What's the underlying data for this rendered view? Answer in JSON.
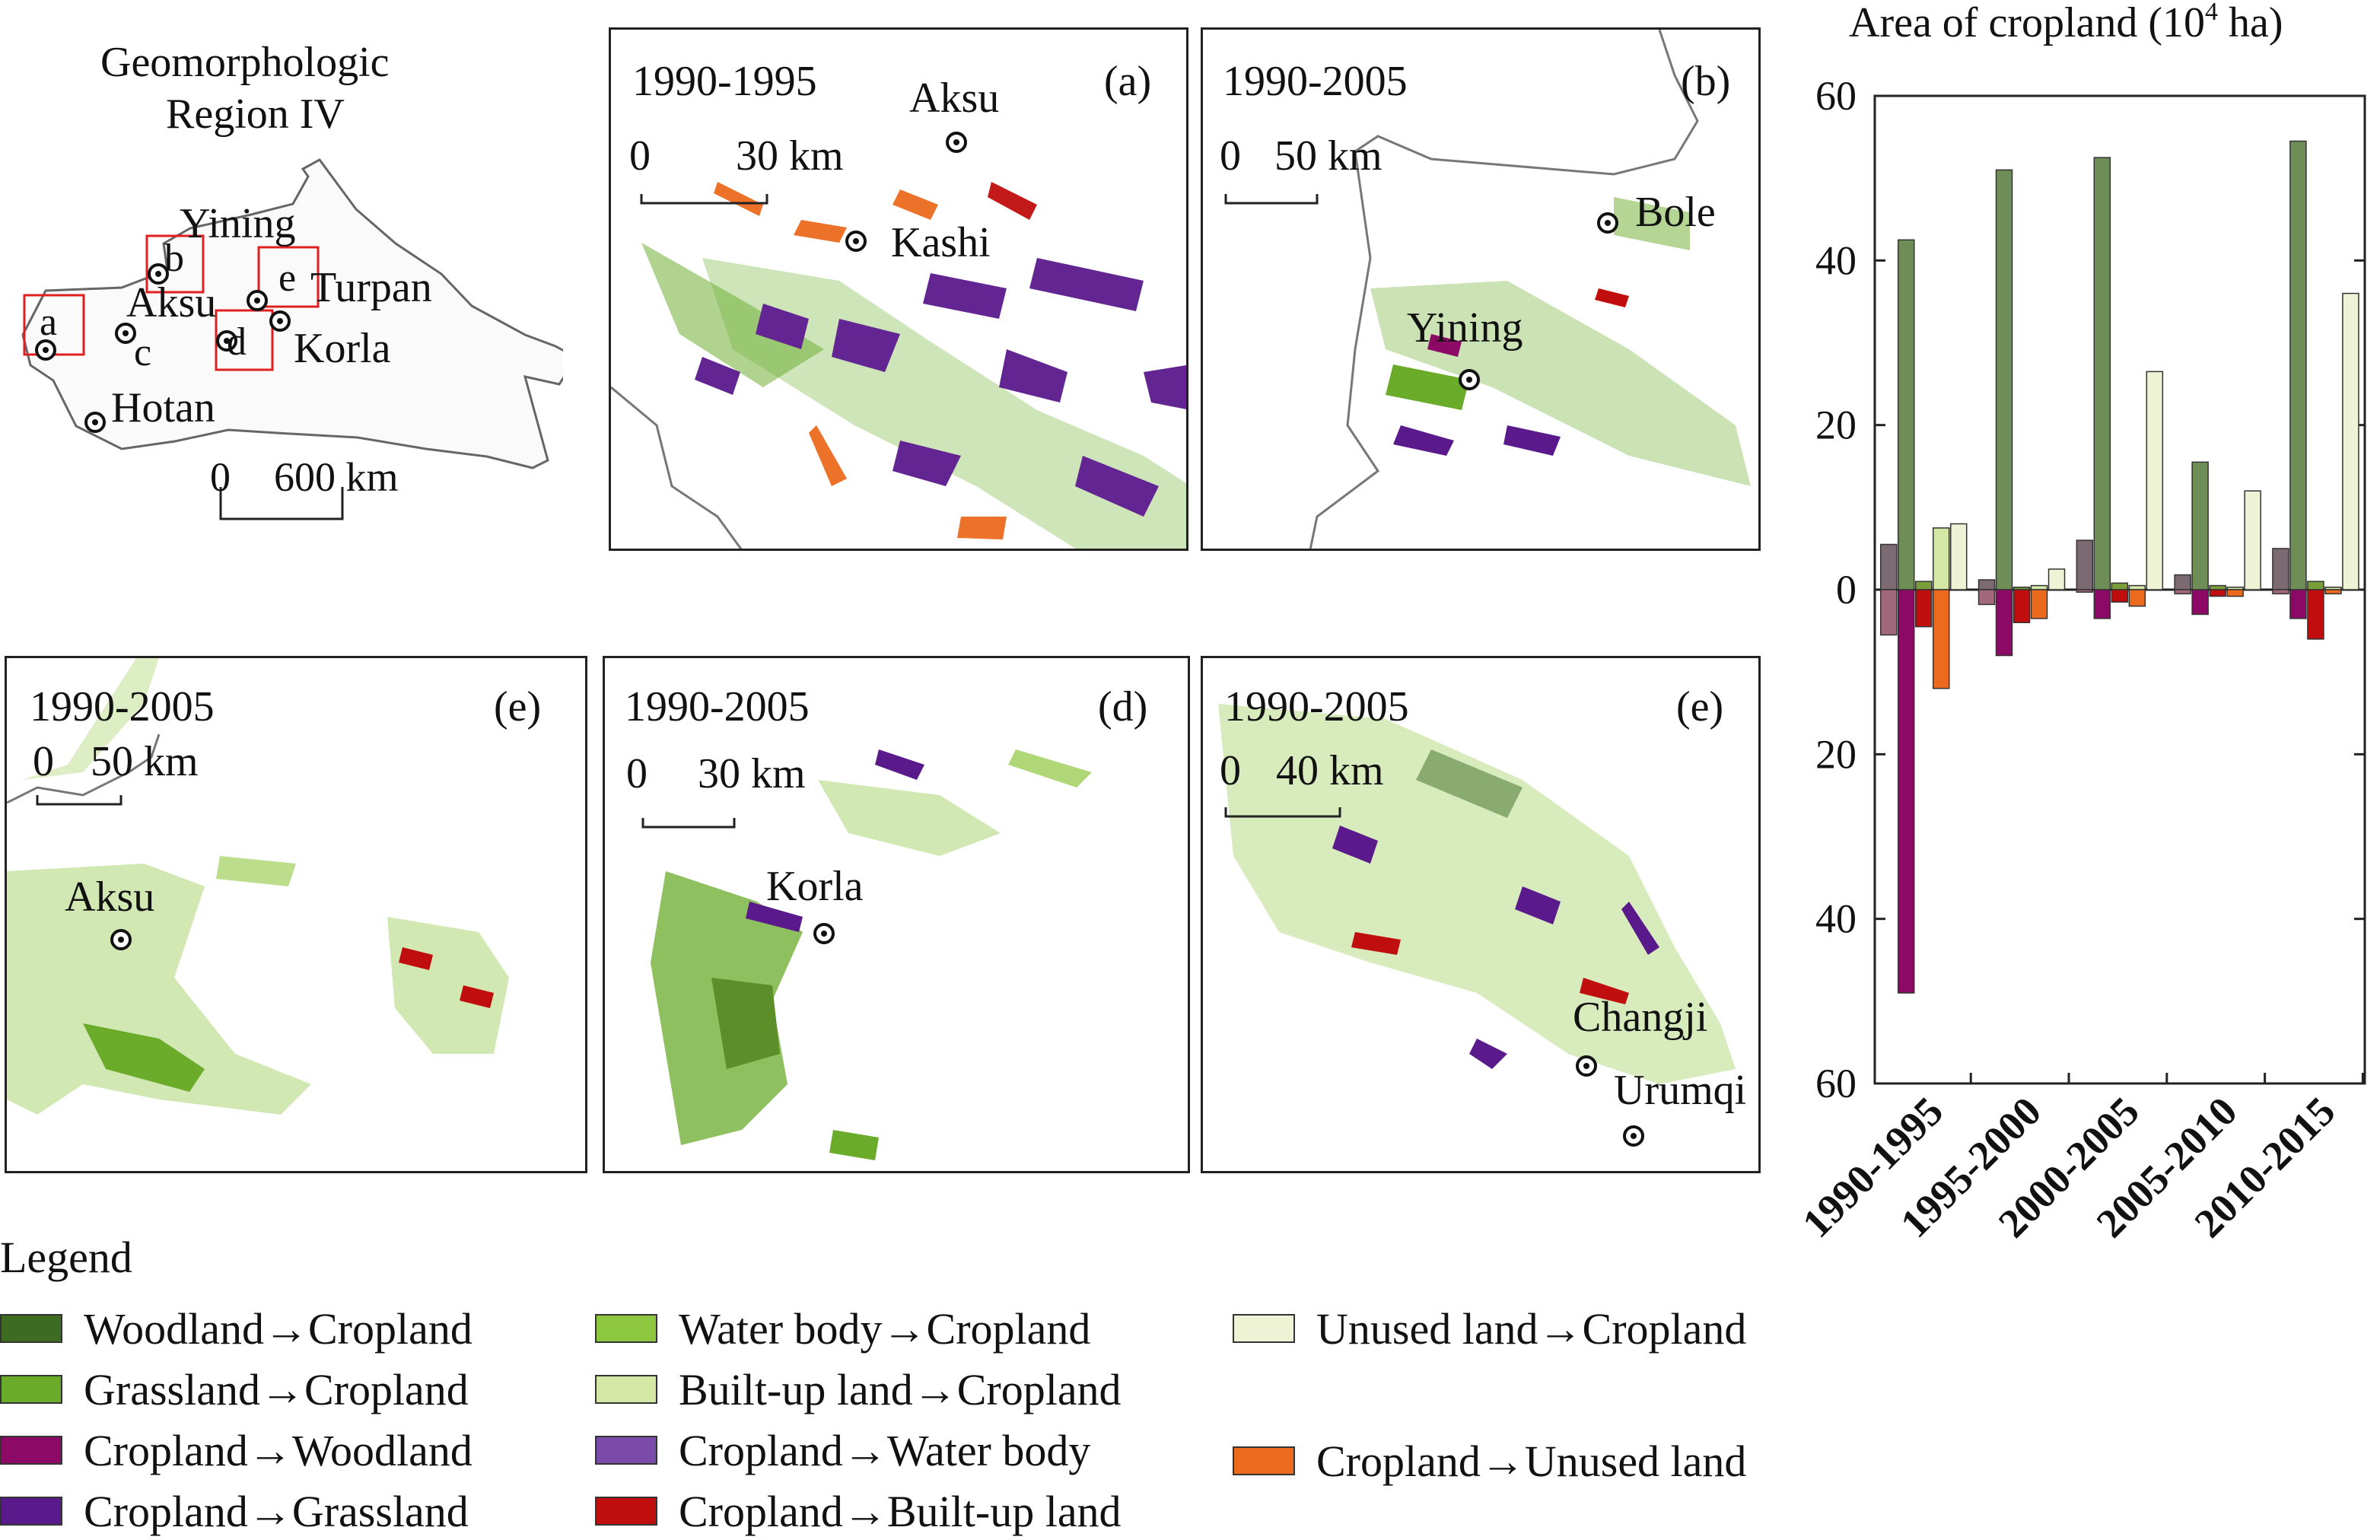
{
  "overview": {
    "title_line1": "Geomorphologic",
    "title_line2": "Region IV",
    "cities": [
      "Yining",
      "Turpan",
      "Aksu",
      "Korla",
      "Hotan"
    ],
    "box_labels": [
      "a",
      "b",
      "c",
      "d",
      "e"
    ],
    "scale": {
      "zero": "0",
      "value": "600 km"
    }
  },
  "panels": [
    {
      "period": "1990-1995",
      "tag": "(a)",
      "scale_zero": "0",
      "scale_value": "30 km",
      "cities": [
        "Aksu",
        "Kashi"
      ]
    },
    {
      "period": "1990-2005",
      "tag": "(b)",
      "scale_zero": "0",
      "scale_value": "50 km",
      "cities": [
        "Bole",
        "Yining"
      ]
    },
    {
      "period": "1990-2005",
      "tag": "(e)",
      "scale_zero": "0",
      "scale_value": "50 km",
      "cities": [
        "Aksu"
      ]
    },
    {
      "period": "1990-2005",
      "tag": "(d)",
      "scale_zero": "0",
      "scale_value": "30 km",
      "cities": [
        "Korla"
      ]
    },
    {
      "period": "1990-2005",
      "tag": "(e)",
      "scale_zero": "0",
      "scale_value": "40 km",
      "cities": [
        "Changji",
        "Urumqi"
      ]
    }
  ],
  "legend": {
    "title": "Legend",
    "items": [
      {
        "label": "Woodland→Cropland",
        "color": "#3d6b22"
      },
      {
        "label": "Grassland→Cropland",
        "color": "#6aab2a"
      },
      {
        "label": "Cropland→Woodland",
        "color": "#8c0a66"
      },
      {
        "label": "Cropland→Grassland",
        "color": "#5a1a8c"
      },
      {
        "label": "Water body→Cropland",
        "color": "#8dc63f"
      },
      {
        "label": "Built-up land→Cropland",
        "color": "#d5e7a5"
      },
      {
        "label": "Cropland→Water body",
        "color": "#7a4ba8"
      },
      {
        "label": "Cropland→Built-up land",
        "color": "#c00d0d"
      },
      {
        "label": "Unused land→Cropland",
        "color": "#eef3d6"
      },
      {
        "label": "Cropland→Unused land",
        "color": "#ec6a1e"
      }
    ]
  },
  "chart_data": {
    "type": "bar",
    "title": "Area of cropland (10",
    "title_sup": "4",
    "title_end": " ha)",
    "categories": [
      "1990-1995",
      "1995-2000",
      "2000-2005",
      "2005-2010",
      "2010-2015"
    ],
    "ylim": [
      -60,
      60
    ],
    "yticks": [
      {
        "value": 60,
        "label": "60"
      },
      {
        "value": 40,
        "label": "40"
      },
      {
        "value": 20,
        "label": "20"
      },
      {
        "value": 0,
        "label": "0"
      },
      {
        "value": -20,
        "label": "20"
      },
      {
        "value": -40,
        "label": "40"
      },
      {
        "value": -60,
        "label": "60"
      }
    ],
    "series": [
      {
        "name": "Woodland→Cropland",
        "color": "#7b6a72",
        "values": [
          5.5,
          1.2,
          6.0,
          1.8,
          5.0
        ]
      },
      {
        "name": "Grassland→Cropland",
        "color": "#6f8e57",
        "values": [
          42.5,
          51.0,
          52.5,
          15.5,
          54.5
        ]
      },
      {
        "name": "Water body→Cropland",
        "color": "#7a9e3c",
        "values": [
          1.0,
          0.3,
          0.8,
          0.5,
          1.0
        ]
      },
      {
        "name": "Built-up land→Cropland",
        "color": "#d5e7a5",
        "values": [
          7.5,
          0.5,
          0.5,
          0.3,
          0.3
        ]
      },
      {
        "name": "Unused land→Cropland",
        "color": "#eef3d6",
        "values": [
          8.0,
          2.5,
          26.5,
          12.0,
          36.0
        ]
      },
      {
        "name": "Cropland→Woodland",
        "color": "#a0687a",
        "values": [
          -5.5,
          -1.8,
          -0.3,
          -0.5,
          -0.5
        ]
      },
      {
        "name": "Cropland→Grassland",
        "color": "#8c0a66",
        "values": [
          -49.0,
          -8.0,
          -3.5,
          -3.0,
          -3.5
        ]
      },
      {
        "name": "Cropland→Built-up land",
        "color": "#c00d0d",
        "values": [
          -4.5,
          -4.0,
          -1.5,
          -0.8,
          -6.0
        ]
      },
      {
        "name": "Cropland→Unused land",
        "color": "#ec6a1e",
        "values": [
          -12.0,
          -3.5,
          -2.0,
          -0.8,
          -0.5
        ]
      }
    ]
  }
}
